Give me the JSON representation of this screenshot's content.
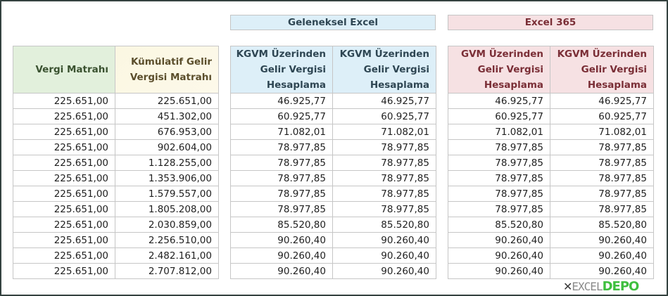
{
  "banners": {
    "traditional": "Geleneksel Excel",
    "excel365": "Excel 365"
  },
  "table_left": {
    "headers": [
      "Vergi Matrahı",
      "Kümülatif Gelir Vergisi Matrahı"
    ],
    "header_lines": [
      [
        "Vergi Matrahı"
      ],
      [
        "Kümülatif Gelir",
        "Vergisi Matrahı"
      ]
    ],
    "rows": [
      [
        "225.651,00",
        "225.651,00"
      ],
      [
        "225.651,00",
        "451.302,00"
      ],
      [
        "225.651,00",
        "676.953,00"
      ],
      [
        "225.651,00",
        "902.604,00"
      ],
      [
        "225.651,00",
        "1.128.255,00"
      ],
      [
        "225.651,00",
        "1.353.906,00"
      ],
      [
        "225.651,00",
        "1.579.557,00"
      ],
      [
        "225.651,00",
        "1.805.208,00"
      ],
      [
        "225.651,00",
        "2.030.859,00"
      ],
      [
        "225.651,00",
        "2.256.510,00"
      ],
      [
        "225.651,00",
        "2.482.161,00"
      ],
      [
        "225.651,00",
        "2.707.812,00"
      ]
    ]
  },
  "table_traditional": {
    "headers": [
      "KGVM Üzerinden Gelir Vergisi Hesaplama",
      "KGVM Üzerinden Gelir Vergisi Hesaplama"
    ],
    "header_lines": [
      [
        "KGVM Üzerinden",
        "Gelir Vergisi",
        "Hesaplama"
      ],
      [
        "KGVM Üzerinden",
        "Gelir Vergisi",
        "Hesaplama"
      ]
    ],
    "rows": [
      [
        "46.925,77",
        "46.925,77"
      ],
      [
        "60.925,77",
        "60.925,77"
      ],
      [
        "71.082,01",
        "71.082,01"
      ],
      [
        "78.977,85",
        "78.977,85"
      ],
      [
        "78.977,85",
        "78.977,85"
      ],
      [
        "78.977,85",
        "78.977,85"
      ],
      [
        "78.977,85",
        "78.977,85"
      ],
      [
        "78.977,85",
        "78.977,85"
      ],
      [
        "85.520,80",
        "85.520,80"
      ],
      [
        "90.260,40",
        "90.260,40"
      ],
      [
        "90.260,40",
        "90.260,40"
      ],
      [
        "90.260,40",
        "90.260,40"
      ]
    ]
  },
  "table_excel365": {
    "headers": [
      "GVM Üzerinden Gelir Vergisi Hesaplama",
      "KGVM Üzerinden Gelir Vergisi Hesaplama"
    ],
    "header_lines": [
      [
        "GVM Üzerinden",
        "Gelir Vergisi",
        "Hesaplama"
      ],
      [
        "KGVM Üzerinden",
        "Gelir Vergisi",
        "Hesaplama"
      ]
    ],
    "rows": [
      [
        "46.925,77",
        "46.925,77"
      ],
      [
        "60.925,77",
        "60.925,77"
      ],
      [
        "71.082,01",
        "71.082,01"
      ],
      [
        "78.977,85",
        "78.977,85"
      ],
      [
        "78.977,85",
        "78.977,85"
      ],
      [
        "78.977,85",
        "78.977,85"
      ],
      [
        "78.977,85",
        "78.977,85"
      ],
      [
        "78.977,85",
        "78.977,85"
      ],
      [
        "85.520,80",
        "85.520,80"
      ],
      [
        "90.260,40",
        "90.260,40"
      ],
      [
        "90.260,40",
        "90.260,40"
      ],
      [
        "90.260,40",
        "90.260,40"
      ]
    ]
  },
  "logo": {
    "mark": "✕",
    "part1": "EXCEL",
    "part2": "DEPO"
  },
  "colors": {
    "frame": "#34423f",
    "green_header": "#e2f0dc",
    "cream_header": "#fbf7e2",
    "blue_header": "#ddeff8",
    "red_header": "#f6e1e3",
    "blue_text": "#2e4653",
    "red_text": "#7a2e36",
    "green_text": "#3a5230",
    "logo_green": "#3fbf3f"
  }
}
